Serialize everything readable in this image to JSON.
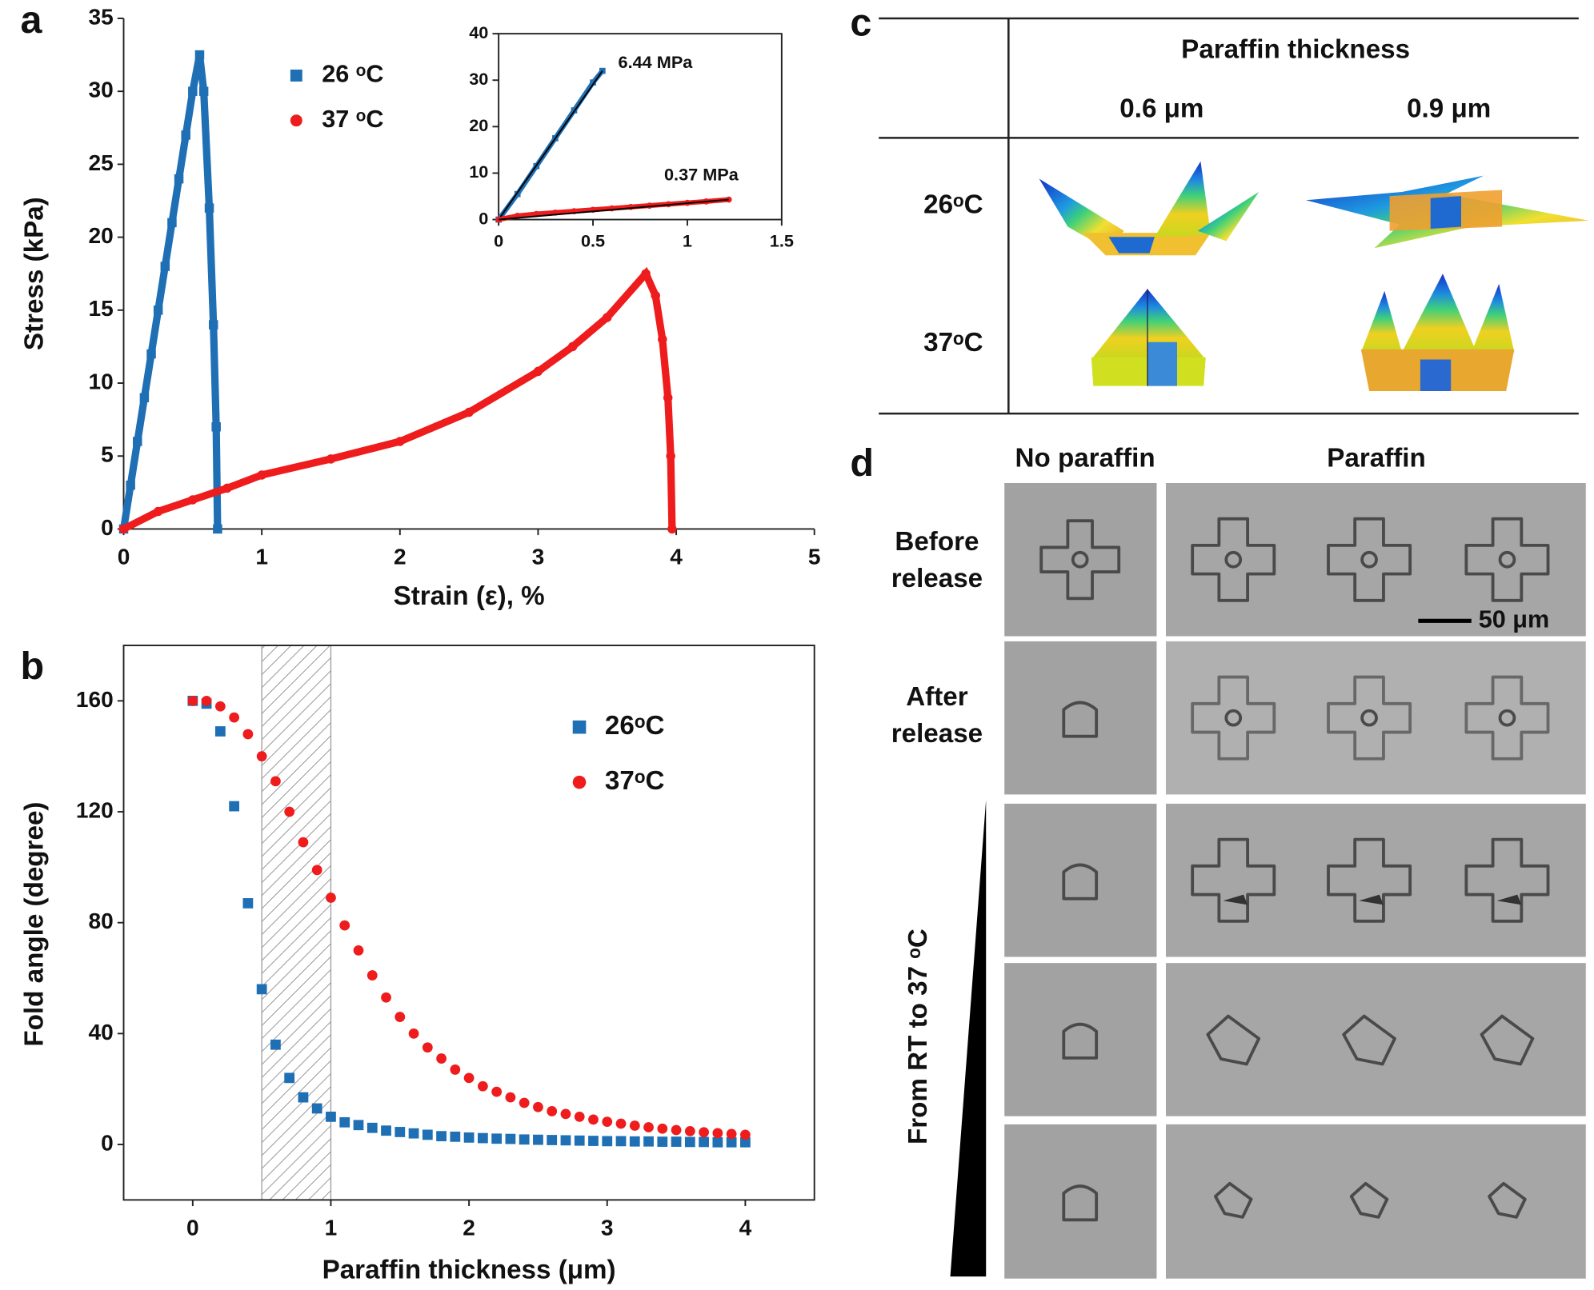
{
  "panel_labels": [
    "a",
    "b",
    "c",
    "d"
  ],
  "chart_data": [
    {
      "type": "line",
      "x_label": "Strain (ε), %",
      "y_label": "Stress (kPa)",
      "xlim": [
        0,
        5
      ],
      "xticks": [
        0,
        1,
        2,
        3,
        4,
        5
      ],
      "ylim": [
        0,
        35
      ],
      "yticks": [
        0,
        5,
        10,
        15,
        20,
        25,
        30,
        35
      ],
      "series": [
        {
          "name": "26 ᵒC",
          "color": "#1f6fb4",
          "marker": "square",
          "x": [
            0,
            0.05,
            0.1,
            0.15,
            0.2,
            0.25,
            0.3,
            0.35,
            0.4,
            0.45,
            0.5,
            0.55,
            0.58,
            0.62,
            0.65,
            0.67,
            0.68
          ],
          "values": [
            0,
            3,
            6,
            9,
            12,
            15,
            18,
            21,
            24,
            27,
            30,
            32.5,
            30,
            22,
            14,
            7,
            0
          ]
        },
        {
          "name": "37 ᵒC",
          "color": "#ee1c1c",
          "marker": "circle",
          "x": [
            0,
            0.25,
            0.5,
            0.75,
            1,
            1.5,
            2,
            2.5,
            3,
            3.25,
            3.5,
            3.78,
            3.85,
            3.9,
            3.94,
            3.96,
            3.97
          ],
          "values": [
            0,
            1.2,
            2,
            2.8,
            3.7,
            4.8,
            6,
            8,
            10.8,
            12.5,
            14.5,
            17.5,
            16,
            13,
            9,
            5,
            0
          ]
        }
      ]
    },
    {
      "type": "line",
      "xlim": [
        0,
        1.5
      ],
      "xticks": [
        0,
        0.5,
        1,
        1.5
      ],
      "ylim": [
        0,
        40
      ],
      "yticks": [
        0,
        10,
        20,
        30,
        40
      ],
      "annotations": [
        "6.44 MPa",
        "0.37 MPa"
      ],
      "series": [
        {
          "color": "#1f6fb4",
          "marker": "square",
          "x": [
            0,
            0.1,
            0.2,
            0.3,
            0.4,
            0.5,
            0.55
          ],
          "values": [
            0,
            5.5,
            11.5,
            17.5,
            23.5,
            29.5,
            32
          ]
        },
        {
          "color": "#ee1c1c",
          "marker": "circle",
          "x": [
            0,
            0.1,
            0.2,
            0.3,
            0.4,
            0.5,
            0.6,
            0.7,
            0.8,
            0.9,
            1,
            1.1,
            1.22
          ],
          "values": [
            0,
            0.8,
            1.2,
            1.5,
            1.8,
            2.1,
            2.4,
            2.7,
            3,
            3.3,
            3.6,
            3.9,
            4.3
          ]
        }
      ]
    },
    {
      "type": "scatter",
      "x_label": "Paraffin thickness (μm)",
      "y_label": "Fold angle   (degree)",
      "xlim": [
        -0.5,
        4.5
      ],
      "xticks": [
        0,
        1,
        2,
        3,
        4
      ],
      "ylim": [
        -20,
        180
      ],
      "yticks": [
        0,
        40,
        80,
        120,
        160
      ],
      "shaded_region": [
        0.5,
        1
      ],
      "x": [
        0,
        0.1,
        0.2,
        0.3,
        0.4,
        0.5,
        0.6,
        0.7,
        0.8,
        0.9,
        1,
        1.1,
        1.2,
        1.3,
        1.4,
        1.5,
        1.6,
        1.7,
        1.8,
        1.9,
        2,
        2.1,
        2.2,
        2.3,
        2.4,
        2.5,
        2.6,
        2.7,
        2.8,
        2.9,
        3,
        3.1,
        3.2,
        3.3,
        3.4,
        3.5,
        3.6,
        3.7,
        3.8,
        3.9,
        4
      ],
      "series": [
        {
          "name": "26ᵒC",
          "color": "#1f6fb4",
          "marker": "square",
          "values": [
            160,
            159,
            149,
            122,
            87,
            56,
            36,
            24,
            17,
            13,
            10,
            8,
            7,
            6,
            5,
            4.5,
            4,
            3.5,
            3,
            2.8,
            2.5,
            2.3,
            2.1,
            2,
            1.8,
            1.7,
            1.6,
            1.5,
            1.4,
            1.3,
            1.2,
            1.2,
            1.1,
            1.1,
            1,
            1,
            0.9,
            0.9,
            0.8,
            0.8,
            0.8
          ]
        },
        {
          "name": "37ᵒC",
          "color": "#ee1c1c",
          "marker": "circle",
          "values": [
            160,
            160,
            158,
            154,
            148,
            140,
            131,
            120,
            109,
            99,
            89,
            79,
            70,
            61,
            53,
            46,
            40,
            35,
            31,
            27,
            24,
            21,
            19,
            17,
            15,
            13.5,
            12,
            11,
            10,
            9,
            8.2,
            7.5,
            6.8,
            6.2,
            5.7,
            5.2,
            4.8,
            4.4,
            4.1,
            3.8,
            3.5
          ]
        }
      ]
    }
  ],
  "table_c": {
    "header": "Paraffin thickness",
    "columns": [
      "0.6 μm",
      "0.9 μm"
    ],
    "rows": [
      "26ᵒC",
      "37ᵒC"
    ]
  },
  "panel_d": {
    "column_headers": [
      "No paraffin",
      "Paraffin"
    ],
    "row_labels": [
      [
        "Before",
        "release"
      ],
      [
        "After",
        "release"
      ]
    ],
    "side_label": "From RT to 37 ᵒC",
    "scale_bar": "50 μm"
  }
}
